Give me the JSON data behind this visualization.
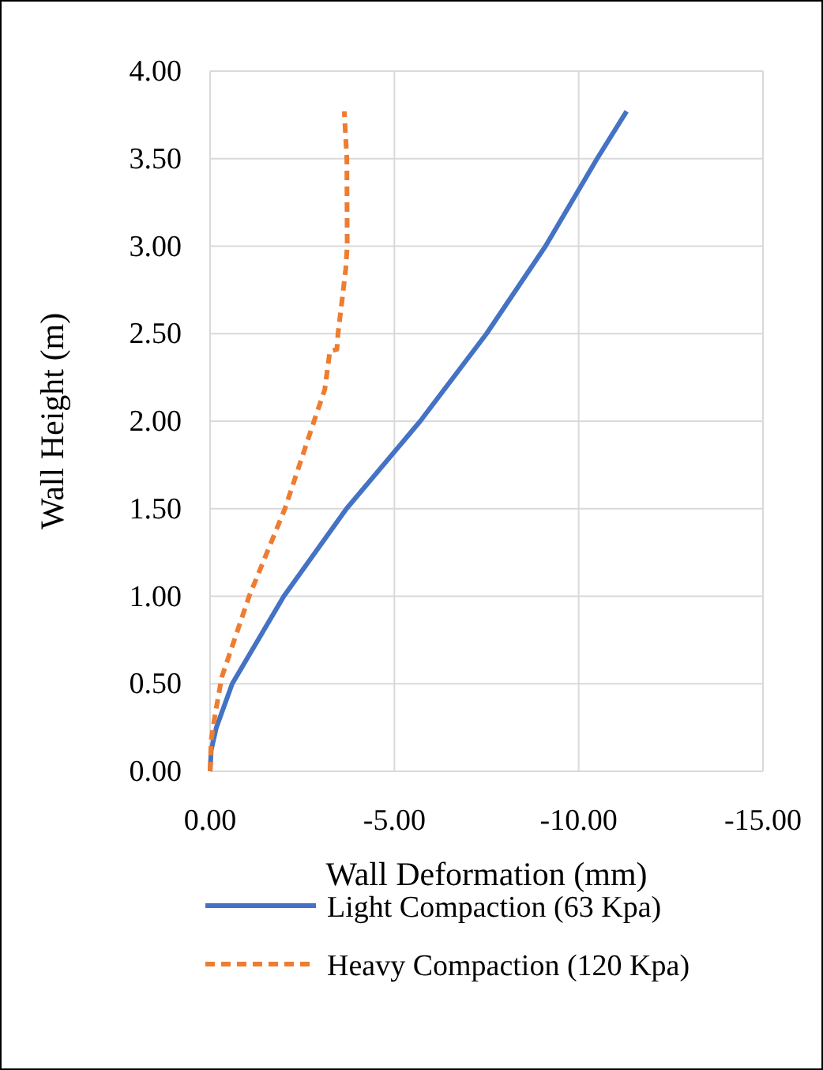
{
  "chart_data": {
    "type": "line",
    "xlabel": "Wall Deformation (mm)",
    "ylabel": "Wall Height (m)",
    "xlim": [
      0,
      -15
    ],
    "xticks": [
      {
        "value": 0,
        "label": "0.00"
      },
      {
        "value": -5,
        "label": "-5.00"
      },
      {
        "value": -10,
        "label": "-10.00"
      },
      {
        "value": -15,
        "label": "-15.00"
      }
    ],
    "ylim": [
      0,
      4
    ],
    "yticks": [
      {
        "value": 0,
        "label": "0.00"
      },
      {
        "value": 0.5,
        "label": "0.50"
      },
      {
        "value": 1,
        "label": "1.00"
      },
      {
        "value": 1.5,
        "label": "1.50"
      },
      {
        "value": 2,
        "label": "2.00"
      },
      {
        "value": 2.5,
        "label": "2.50"
      },
      {
        "value": 3,
        "label": "3.00"
      },
      {
        "value": 3.5,
        "label": "3.50"
      },
      {
        "value": 4,
        "label": "4.00"
      }
    ],
    "grid": true,
    "legend": "bottom",
    "series": [
      {
        "name": "Light Compaction (63 Kpa)",
        "color": "#4472c4",
        "line_style": "solid",
        "x": [
          0,
          -0.03,
          -0.17,
          -0.6,
          -2.0,
          -3.7,
          -5.7,
          -7.5,
          -9.1,
          -10.5,
          -11.3
        ],
        "values": [
          0,
          0.12,
          0.25,
          0.5,
          1.0,
          1.5,
          2.0,
          2.5,
          3.0,
          3.5,
          3.77
        ]
      },
      {
        "name": "Heavy Compaction (120 Kpa)",
        "color": "#ed7d31",
        "line_style": "dashed",
        "x": [
          0,
          -0.03,
          -0.14,
          -0.32,
          -1.06,
          -2.03,
          -2.82,
          -3.11,
          -3.25,
          -3.44,
          -3.47,
          -3.58,
          -3.68,
          -3.72,
          -3.71,
          -3.64
        ],
        "values": [
          0,
          0.18,
          0.33,
          0.54,
          1.0,
          1.5,
          2.0,
          2.18,
          2.4,
          2.41,
          2.5,
          2.69,
          2.87,
          3.0,
          3.5,
          3.77
        ]
      }
    ]
  }
}
